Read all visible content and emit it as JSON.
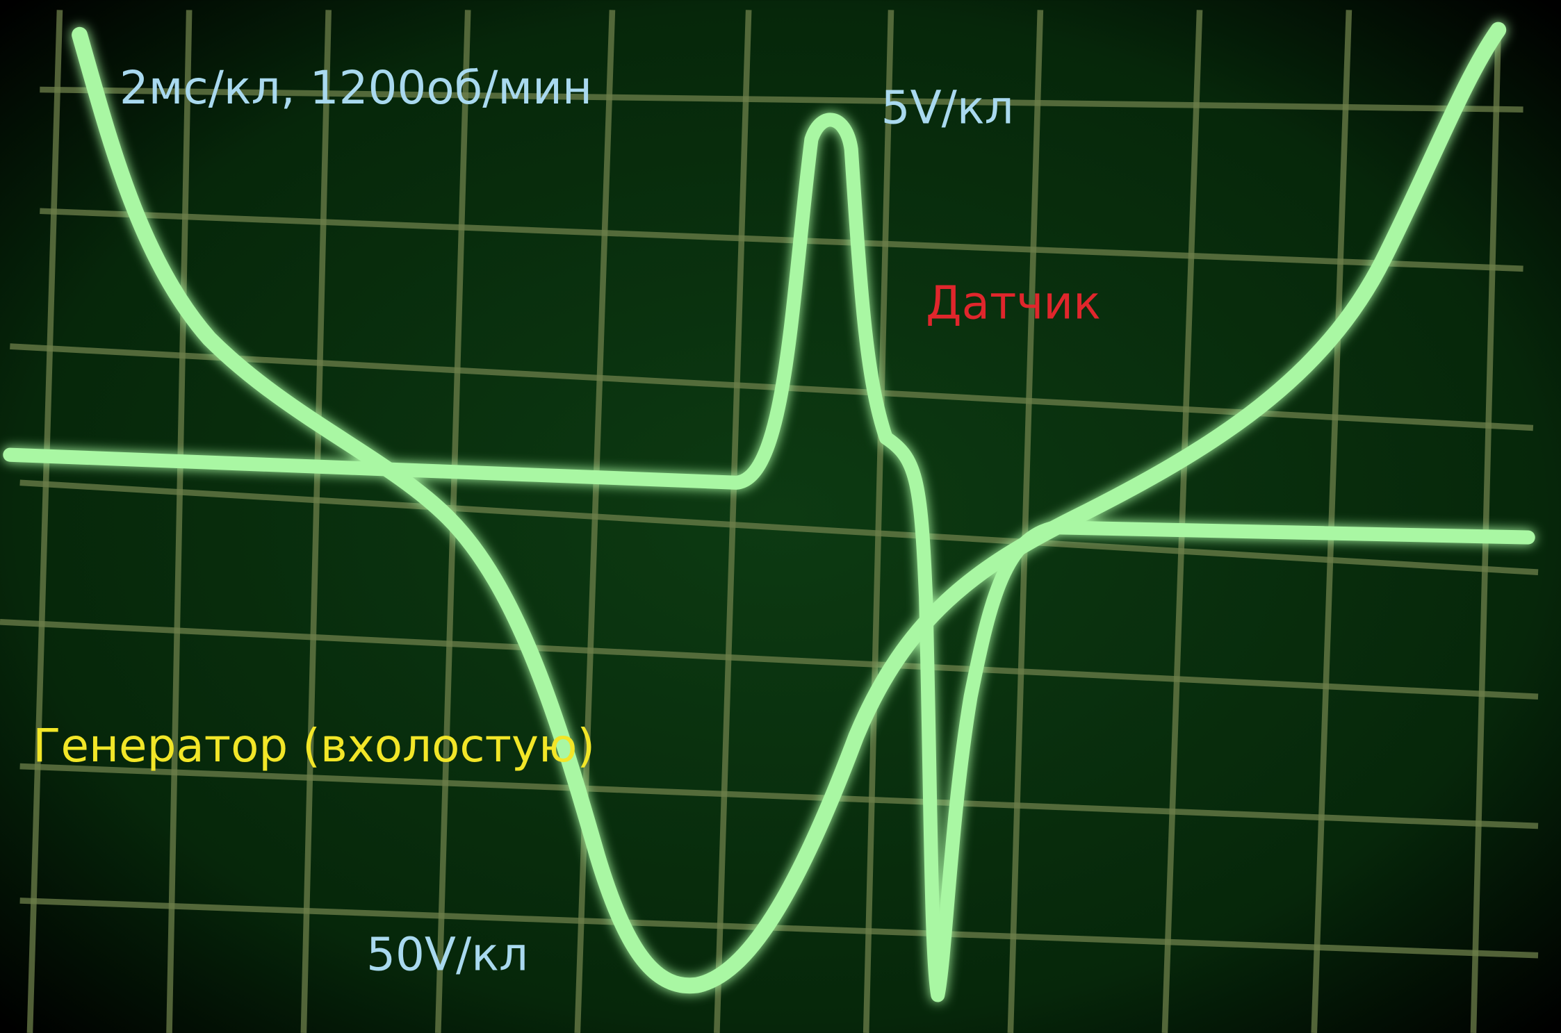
{
  "annotations": {
    "timebase": "2мс/кл, 1200об/мин",
    "sensor_scale": "5V/кл",
    "sensor_label": "Датчик",
    "generator_label": "Генератор (вхолостую)",
    "generator_scale": "50V/кл"
  }
}
